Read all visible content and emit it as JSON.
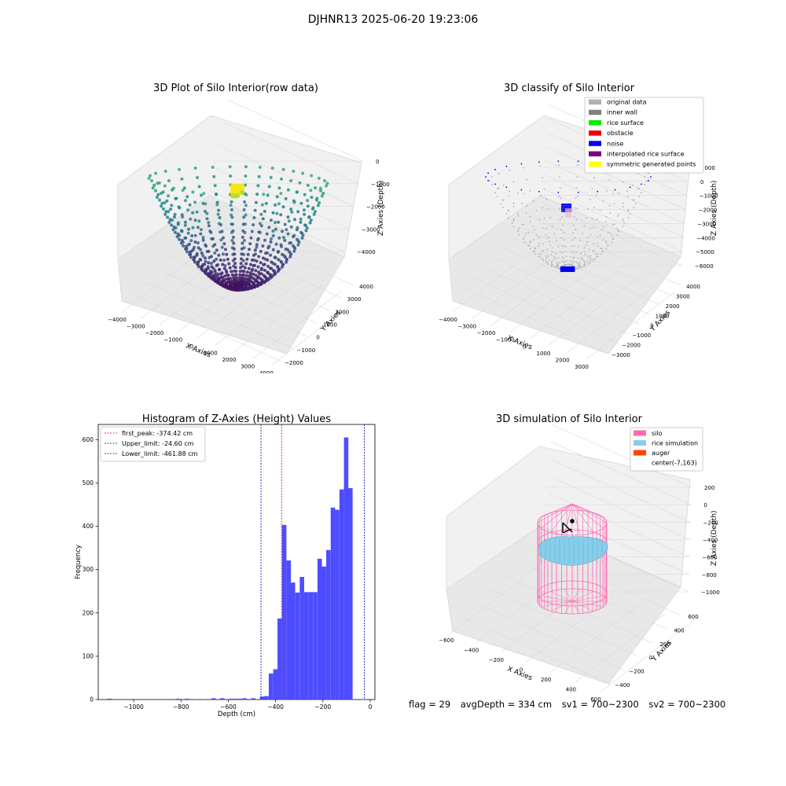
{
  "figure": {
    "suptitle": "DJHNR13 2025-06-20 19:23:06",
    "footer": {
      "flag": "flag = 29",
      "avg_depth": "avgDepth = 334 cm",
      "sv1": "sv1 = 700~2300",
      "sv2": "sv2 = 700~2300"
    }
  },
  "chart_data": [
    {
      "type": "scatter",
      "title": "3D Plot of Silo Interior(row data)",
      "xlabel": "X Axies",
      "ylabel": "Y Axies",
      "zlabel": "Z Axies (Depth)",
      "x_ticks": [
        "−4000",
        "−3000",
        "−2000",
        "−1000",
        "0",
        "1000",
        "2000",
        "3000",
        "4000"
      ],
      "y_ticks": [
        "−2000",
        "−1000",
        "0",
        "1000",
        "2000",
        "3000",
        "4000"
      ],
      "z_ticks": [
        "0",
        "−1000",
        "−2000",
        "−3000",
        "−4000"
      ],
      "xlim": [
        -4300,
        4300
      ],
      "ylim": [
        -2500,
        4500
      ],
      "zlim": [
        -4500,
        200
      ],
      "colormap": "viridis",
      "grid": true
    },
    {
      "type": "scatter",
      "title": "3D classify of Silo Interior",
      "xlabel": "X Axies",
      "ylabel": "Y Axies",
      "zlabel": "Z Axies (Depth)",
      "x_ticks": [
        "−4000",
        "−3000",
        "−2000",
        "−1000",
        "0",
        "1000",
        "2000",
        "3000"
      ],
      "y_ticks": [
        "−3000",
        "−2000",
        "−1000",
        "0",
        "1000",
        "2000",
        "3000",
        "4000"
      ],
      "z_ticks": [
        "1000",
        "0",
        "−1000",
        "−2000",
        "−3000",
        "−4000",
        "−5000",
        "−6000"
      ],
      "legend": {
        "position": "top-right",
        "entries": [
          {
            "label": "original data",
            "color": "#b0b0b0"
          },
          {
            "label": "inner wall",
            "color": "#808080"
          },
          {
            "label": "rice surface",
            "color": "#00ee00"
          },
          {
            "label": "obstacle",
            "color": "#ee0000"
          },
          {
            "label": "noise",
            "color": "#0000ee"
          },
          {
            "label": "interpolated rice surface",
            "color": "#800080"
          },
          {
            "label": "symmetric generated points",
            "color": "#ffff00"
          }
        ]
      },
      "grid": true
    },
    {
      "type": "bar",
      "title": "Histogram of Z-Axies (Height) Values",
      "xlabel": "Depth (cm)",
      "ylabel": "Frequency",
      "xlim": [
        -1150,
        20
      ],
      "ylim": [
        0,
        635
      ],
      "x_ticks": [
        -1000,
        -800,
        -600,
        -400,
        -200,
        0
      ],
      "x_tick_labels": [
        "−1000",
        "−800",
        "−600",
        "−400",
        "−200",
        "0"
      ],
      "y_ticks": [
        0,
        100,
        200,
        300,
        400,
        500,
        600
      ],
      "bar_color": "#4d4dff",
      "bin_width": 18.7,
      "bins": [
        {
          "x": -1112,
          "v": 2
        },
        {
          "x": -822,
          "v": 2
        },
        {
          "x": -784,
          "v": 2
        },
        {
          "x": -747,
          "v": 1
        },
        {
          "x": -709,
          "v": 1
        },
        {
          "x": -672,
          "v": 3
        },
        {
          "x": -635,
          "v": 3
        },
        {
          "x": -597,
          "v": 2
        },
        {
          "x": -578,
          "v": 2
        },
        {
          "x": -560,
          "v": 2
        },
        {
          "x": -541,
          "v": 3
        },
        {
          "x": -504,
          "v": 3
        },
        {
          "x": -466,
          "v": 7
        },
        {
          "x": -448,
          "v": 8
        },
        {
          "x": -429,
          "v": 60
        },
        {
          "x": -410,
          "v": 70
        },
        {
          "x": -392,
          "v": 187
        },
        {
          "x": -373,
          "v": 403
        },
        {
          "x": -354,
          "v": 321
        },
        {
          "x": -336,
          "v": 270
        },
        {
          "x": -317,
          "v": 247
        },
        {
          "x": -298,
          "v": 283
        },
        {
          "x": -280,
          "v": 248
        },
        {
          "x": -261,
          "v": 248
        },
        {
          "x": -242,
          "v": 248
        },
        {
          "x": -223,
          "v": 325
        },
        {
          "x": -205,
          "v": 307
        },
        {
          "x": -186,
          "v": 345
        },
        {
          "x": -167,
          "v": 443
        },
        {
          "x": -149,
          "v": 438
        },
        {
          "x": -130,
          "v": 485
        },
        {
          "x": -111,
          "v": 605
        },
        {
          "x": -93,
          "v": 488
        },
        {
          "x": -74,
          "v": 0
        }
      ],
      "lines": [
        {
          "label": "first_peak: -374.42 cm",
          "x": -374.42,
          "color": "#e8003a"
        },
        {
          "label": "Upper_limit: -24.60 cm",
          "x": -24.6,
          "color": "#0000a0"
        },
        {
          "label": "Lower_limit: -461.88 cm",
          "x": -461.88,
          "color": "#0000a0"
        }
      ],
      "legend_position": "top-left"
    },
    {
      "type": "scatter",
      "title": "3D simulation of Silo Interior",
      "xlabel": "X Axies",
      "ylabel": "Y Axies",
      "zlabel": "Z Axies (Depth)",
      "x_ticks": [
        "−600",
        "−400",
        "−200",
        "0",
        "200",
        "400",
        "600"
      ],
      "y_ticks": [
        "−400",
        "−200",
        "0",
        "200",
        "400",
        "600"
      ],
      "z_ticks": [
        "200",
        "0",
        "−200",
        "−400",
        "−600",
        "−800",
        "−1000"
      ],
      "legend": {
        "position": "top-right",
        "entries": [
          {
            "label": "silo",
            "color": "#ff69b4"
          },
          {
            "label": "rice simulation",
            "color": "#87ceeb"
          },
          {
            "label": "auger",
            "color": "#ff4500"
          },
          {
            "label": "center(-7,163)",
            "color": ""
          }
        ]
      },
      "grid": true
    }
  ]
}
